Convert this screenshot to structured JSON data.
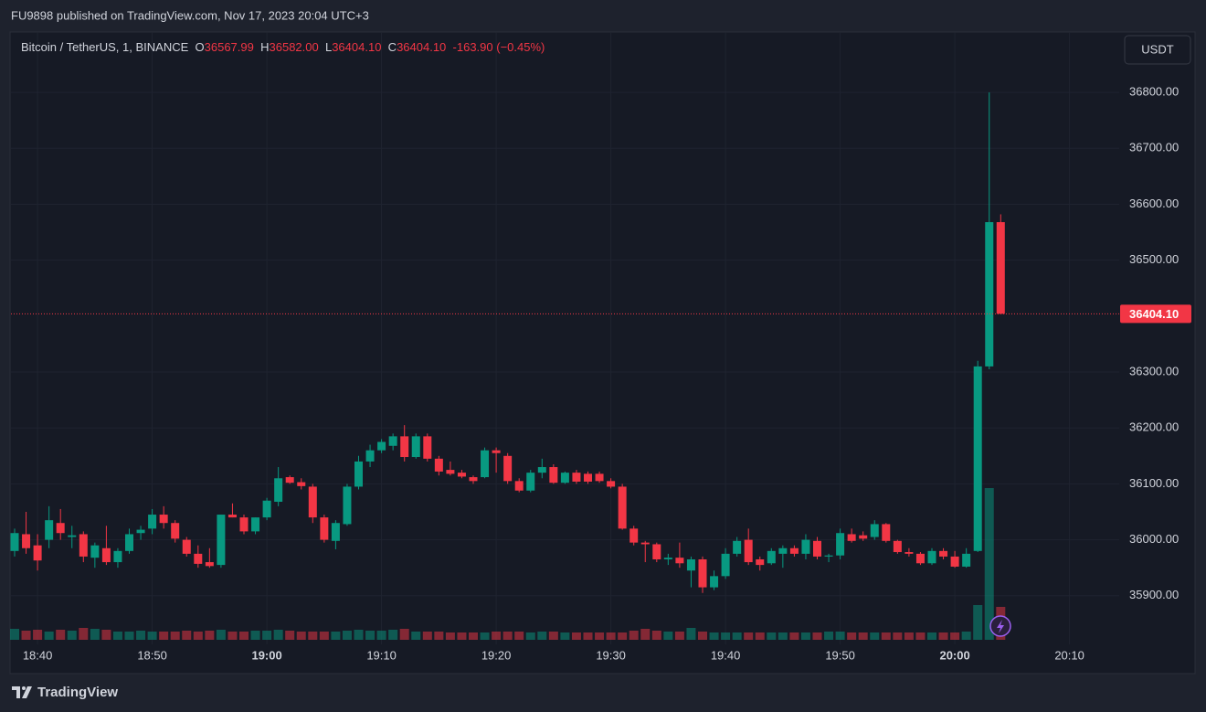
{
  "header": {
    "text": "FU9898 published on TradingView.com, Nov 17, 2023 20:04 UTC+3"
  },
  "footer": {
    "logo_text": "TradingView"
  },
  "chart_data": {
    "type": "candlestick",
    "currency": "USDT",
    "legend": {
      "symbol": "Bitcoin / TetherUS, 1, BINANCE",
      "o_label": "O",
      "o": "36567.99",
      "h_label": "H",
      "h": "36582.00",
      "l_label": "L",
      "l": "36404.10",
      "c_label": "C",
      "c": "36404.10",
      "change": "-163.90 (−0.45%)"
    },
    "up_color": "#089981",
    "down_color": "#f23645",
    "categories": [
      "18:38",
      "18:39",
      "18:40",
      "18:41",
      "18:42",
      "18:43",
      "18:44",
      "18:45",
      "18:46",
      "18:47",
      "18:48",
      "18:49",
      "18:50",
      "18:51",
      "18:52",
      "18:53",
      "18:54",
      "18:55",
      "18:56",
      "18:57",
      "18:58",
      "18:59",
      "19:00",
      "19:01",
      "19:02",
      "19:03",
      "19:04",
      "19:05",
      "19:06",
      "19:07",
      "19:08",
      "19:09",
      "19:10",
      "19:11",
      "19:12",
      "19:13",
      "19:14",
      "19:15",
      "19:16",
      "19:17",
      "19:18",
      "19:19",
      "19:20",
      "19:21",
      "19:22",
      "19:23",
      "19:24",
      "19:25",
      "19:26",
      "19:27",
      "19:28",
      "19:29",
      "19:30",
      "19:31",
      "19:32",
      "19:33",
      "19:34",
      "19:35",
      "19:36",
      "19:37",
      "19:38",
      "19:39",
      "19:40",
      "19:41",
      "19:42",
      "19:43",
      "19:44",
      "19:45",
      "19:46",
      "19:47",
      "19:48",
      "19:49",
      "19:50",
      "19:51",
      "19:52",
      "19:53",
      "19:54",
      "19:55",
      "19:56",
      "19:57",
      "19:58",
      "19:59",
      "20:00",
      "20:01",
      "20:02",
      "20:03",
      "20:04"
    ],
    "open": [
      35980,
      36010,
      35990,
      36000,
      36030,
      36005,
      36010,
      35968,
      35985,
      35960,
      35980,
      36012,
      36020,
      36045,
      36030,
      36000,
      35975,
      35960,
      35955,
      36045,
      36040,
      36015,
      36040,
      36068,
      36112,
      36103,
      36095,
      36040,
      35998,
      36028,
      36095,
      36140,
      36160,
      36168,
      36185,
      36148,
      36185,
      36145,
      36125,
      36120,
      36112,
      36112,
      36160,
      36150,
      36105,
      36088,
      36120,
      36130,
      36102,
      36120,
      36118,
      36118,
      36105,
      36095,
      36020,
      35995,
      35992,
      35965,
      35968,
      35945,
      35965,
      35915,
      35935,
      35975,
      36000,
      35965,
      35958,
      35975,
      35985,
      35975,
      35998,
      35970,
      35972,
      36010,
      36008,
      36005,
      36028,
      35998,
      35978,
      35975,
      35958,
      35980,
      35970,
      35952,
      35980,
      36310,
      36567.99
    ],
    "high": [
      36020,
      36050,
      36010,
      36060,
      36055,
      36025,
      36015,
      35995,
      36025,
      35985,
      36020,
      36025,
      36055,
      36060,
      36035,
      36005,
      35990,
      35985,
      36045,
      36065,
      36045,
      36040,
      36075,
      36130,
      36115,
      36110,
      36100,
      36045,
      36035,
      36100,
      36150,
      36170,
      36180,
      36190,
      36205,
      36190,
      36190,
      36150,
      36140,
      36125,
      36115,
      36165,
      36165,
      36155,
      36110,
      36125,
      36145,
      36135,
      36122,
      36125,
      36122,
      36122,
      36110,
      36100,
      36025,
      35998,
      35995,
      35975,
      35995,
      35970,
      35970,
      35945,
      35985,
      36005,
      36020,
      35970,
      35985,
      35990,
      35990,
      36010,
      36005,
      35975,
      36020,
      36020,
      36015,
      36035,
      36030,
      36000,
      35985,
      35978,
      35985,
      35985,
      35980,
      35985,
      36320,
      36800,
      36582
    ],
    "low": [
      35970,
      35975,
      35945,
      35985,
      36000,
      35985,
      35960,
      35950,
      35955,
      35950,
      35975,
      36000,
      36010,
      36020,
      35995,
      35970,
      35950,
      35950,
      35950,
      36040,
      36010,
      36010,
      36035,
      36060,
      36100,
      36090,
      36030,
      35995,
      35983,
      36025,
      36090,
      36130,
      36155,
      36160,
      36140,
      36145,
      36140,
      36115,
      36115,
      36110,
      36100,
      36110,
      36120,
      36100,
      36085,
      36085,
      36110,
      36100,
      36100,
      36100,
      36100,
      36102,
      36092,
      36018,
      35990,
      35960,
      35960,
      35955,
      35950,
      35915,
      35905,
      35910,
      35930,
      35970,
      35955,
      35945,
      35955,
      35950,
      35970,
      35965,
      35965,
      35960,
      35965,
      35995,
      35998,
      36000,
      35995,
      35975,
      35970,
      35955,
      35955,
      35965,
      35950,
      35950,
      35978,
      36305,
      36404.1
    ],
    "close": [
      36012,
      35985,
      35963,
      36035,
      36012,
      36008,
      35970,
      35990,
      35960,
      35980,
      36010,
      36018,
      36045,
      36030,
      36002,
      35975,
      35957,
      35953,
      36045,
      36040,
      36015,
      36040,
      36070,
      36110,
      36102,
      36096,
      36040,
      36000,
      36030,
      36095,
      36140,
      36160,
      36175,
      36185,
      36148,
      36185,
      36145,
      36122,
      36118,
      36113,
      36105,
      36160,
      36155,
      36105,
      36088,
      36120,
      36130,
      36102,
      36120,
      36104,
      36104,
      36105,
      36095,
      36020,
      35995,
      35992,
      35965,
      35968,
      35958,
      35965,
      35915,
      35935,
      35975,
      35998,
      35960,
      35955,
      35980,
      35985,
      35975,
      36000,
      35970,
      35972,
      36012,
      35998,
      36002,
      36028,
      35998,
      35978,
      35975,
      35958,
      35980,
      35970,
      35952,
      35975,
      36310,
      36567.99,
      36404.1
    ],
    "volume": [
      12,
      10,
      11,
      9,
      11,
      10,
      13,
      12,
      11,
      9,
      9,
      10,
      9,
      9,
      9,
      10,
      9,
      10,
      11,
      9,
      9,
      10,
      10,
      11,
      10,
      9,
      9,
      9,
      9,
      10,
      11,
      10,
      10,
      11,
      12,
      9,
      9,
      9,
      8,
      8,
      8,
      8,
      9,
      9,
      9,
      8,
      9,
      9,
      8,
      8,
      8,
      8,
      8,
      8,
      10,
      12,
      10,
      9,
      9,
      13,
      9,
      8,
      8,
      8,
      8,
      8,
      8,
      8,
      8,
      8,
      8,
      9,
      9,
      8,
      8,
      8,
      8,
      8,
      8,
      8,
      8,
      8,
      8,
      9,
      38,
      166,
      36
    ],
    "ylim": [
      35813,
      36908
    ],
    "yticks": [
      {
        "value": 35900,
        "label": "35900.00"
      },
      {
        "value": 36000,
        "label": "36000.00"
      },
      {
        "value": 36100,
        "label": "36100.00"
      },
      {
        "value": 36200,
        "label": "36200.00"
      },
      {
        "value": 36300,
        "label": "36300.00"
      },
      {
        "value": 36500,
        "label": "36500.00"
      },
      {
        "value": 36600,
        "label": "36600.00"
      },
      {
        "value": 36700,
        "label": "36700.00"
      },
      {
        "value": 36800,
        "label": "36800.00"
      }
    ],
    "xticks": [
      "18:40",
      "18:50",
      "19:00",
      "19:10",
      "19:20",
      "19:30",
      "19:40",
      "19:50",
      "20:00",
      "20:10"
    ],
    "price_line": {
      "value": 36404.1,
      "label": "36404.10"
    },
    "grid": true
  }
}
